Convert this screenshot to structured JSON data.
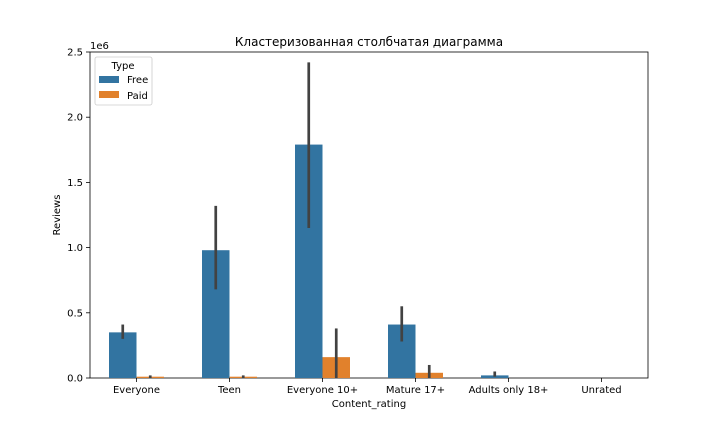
{
  "chart_data": {
    "type": "bar",
    "title": "Кластеризованная столбчатая диаграмма",
    "xlabel": "Content_rating",
    "ylabel": "Reviews",
    "y_offset_label": "1e6",
    "categories": [
      "Everyone",
      "Teen",
      "Everyone 10+",
      "Mature 17+",
      "Adults only 18+",
      "Unrated"
    ],
    "ylim": [
      0,
      2.5
    ],
    "yticks": [
      0.0,
      0.5,
      1.0,
      1.5,
      2.0,
      2.5
    ],
    "ytick_labels": [
      "0.0",
      "0.5",
      "1.0",
      "1.5",
      "2.0",
      "2.5"
    ],
    "legend": {
      "title": "Type",
      "position": "top-left"
    },
    "series": [
      {
        "name": "Free",
        "color": "#3274a1",
        "values": [
          0.35,
          0.98,
          1.79,
          0.41,
          0.02,
          0.0
        ],
        "error_low": [
          0.3,
          0.68,
          1.15,
          0.28,
          0.01,
          0.0
        ],
        "error_high": [
          0.41,
          1.32,
          2.42,
          0.55,
          0.05,
          0.0
        ]
      },
      {
        "name": "Paid",
        "color": "#e1812c",
        "values": [
          0.01,
          0.01,
          0.16,
          0.04,
          0.0,
          0.0
        ],
        "error_low": [
          0.0,
          0.0,
          0.0,
          0.0,
          0.0,
          0.0
        ],
        "error_high": [
          0.02,
          0.02,
          0.38,
          0.1,
          0.0,
          0.0
        ]
      }
    ]
  }
}
